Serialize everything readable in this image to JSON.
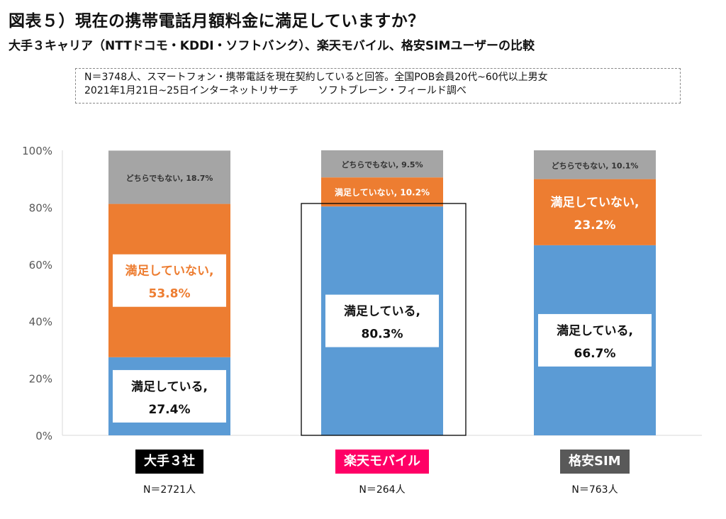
{
  "header": {
    "title": "図表５）現在の携帯電話月額料金に満足していますか？",
    "subtitle": "大手３キャリア（NTTドコモ・KDDI・ソフトバンク）、楽天モバイル、格安SIMユーザーの比較",
    "note_line1": "N＝3748人、スマートフォン・携帯電話を現在契約していると回答。全国POB会員20代~60代以上男女",
    "note_line2": "2021年1月21日~25日インターネットリサーチ　　ソフトブレーン・フィールド調べ"
  },
  "chart_data": {
    "type": "bar",
    "stacked": true,
    "percent_axis": true,
    "ylim": [
      0,
      100
    ],
    "yticks": [
      "0%",
      "20%",
      "40%",
      "60%",
      "80%",
      "100%"
    ],
    "categories": [
      "大手３社",
      "楽天モバイル",
      "格安SIM"
    ],
    "category_colors": [
      "#000000",
      "#ff0066",
      "#595959"
    ],
    "counts": [
      "N＝2721人",
      "N＝264人",
      "N＝763人"
    ],
    "series": [
      {
        "name": "満足している",
        "color": "#5b9bd5",
        "values": [
          27.4,
          80.3,
          66.7
        ],
        "labels": [
          [
            "満足している,",
            "27.4%"
          ],
          [
            "満足している,",
            "80.3%"
          ],
          [
            "満足している,",
            "66.7%"
          ]
        ]
      },
      {
        "name": "満足していない",
        "color": "#ed7d31",
        "values": [
          53.8,
          10.2,
          23.2
        ],
        "labels": [
          [
            "満足していない,",
            "53.8%"
          ],
          [
            "満足していない, 10.2%"
          ],
          [
            "満足していない,",
            "23.2%"
          ]
        ]
      },
      {
        "name": "どちらでもない",
        "color": "#a5a5a5",
        "values": [
          18.7,
          9.5,
          10.1
        ],
        "labels": [
          [
            "どちらでもない, 18.7%"
          ],
          [
            "どちらでもない, 9.5%"
          ],
          [
            "どちらでもない, 10.1%"
          ]
        ]
      }
    ],
    "highlight_category": "楽天モバイル",
    "grid": false
  }
}
